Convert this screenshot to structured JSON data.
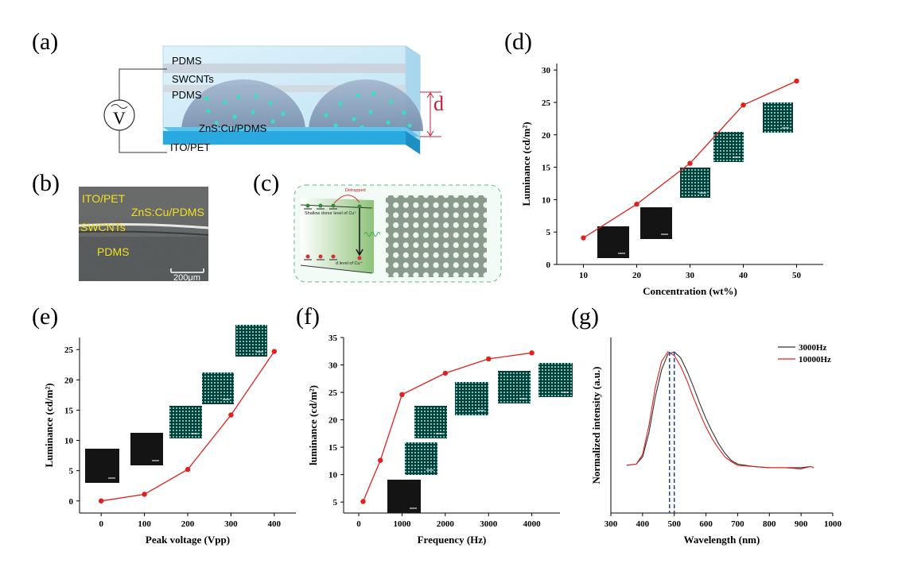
{
  "panels": {
    "a": {
      "label": "(a)",
      "layers": [
        "PDMS",
        "SWCNTs",
        "PDMS",
        "ZnS:Cu/PDMS",
        "ITO/PET"
      ],
      "source_symbol": "V",
      "thickness_label": "d"
    },
    "b": {
      "label": "(b)",
      "layers": [
        "ITO/PET",
        "ZnS:Cu/PDMS",
        "SWCNTs",
        "PDMS"
      ],
      "scale_bar": "200μm"
    },
    "c": {
      "label": "(c)",
      "detrapped": "Detrapped",
      "shallow_donor": "Shallow donor level of Cu⁺",
      "d_level": "d level of Cu⁺"
    },
    "d": {
      "label": "(d)"
    },
    "e": {
      "label": "(e)"
    },
    "f": {
      "label": "(f)"
    },
    "g": {
      "label": "(g)"
    }
  },
  "colors": {
    "series_red": "#e0201c",
    "series_black": "#333333",
    "phosphor": "#36e0c0",
    "dashed_blue": "#1a3fb0",
    "substrate_blue": "#2aa8e0",
    "dimension_red": "#c0203a"
  },
  "chart_data": [
    {
      "id": "d",
      "type": "line",
      "x": [
        10,
        20,
        30,
        40,
        50
      ],
      "series": [
        {
          "values": [
            4.1,
            9.3,
            15.6,
            24.6,
            28.3
          ]
        }
      ],
      "xlabel": "Concentration (wt%)",
      "ylabel": "Luminance (cd/m²)",
      "xlim": [
        5,
        55
      ],
      "ylim": [
        0,
        31
      ],
      "xticks": [
        10,
        20,
        30,
        40,
        50
      ],
      "yticks": [
        0,
        5,
        10,
        15,
        20,
        25,
        30
      ],
      "grid": false
    },
    {
      "id": "e",
      "type": "line",
      "x": [
        0,
        100,
        200,
        300,
        400
      ],
      "series": [
        {
          "values": [
            0.0,
            1.1,
            5.2,
            14.2,
            24.7
          ]
        }
      ],
      "xlabel": "Peak voltage (Vpp)",
      "ylabel": "Luminance (cd/m²)",
      "xlim": [
        -50,
        450
      ],
      "ylim": [
        -2,
        27
      ],
      "xticks": [
        0,
        100,
        200,
        300,
        400
      ],
      "yticks": [
        0,
        5,
        10,
        15,
        20,
        25
      ],
      "grid": false
    },
    {
      "id": "f",
      "type": "line",
      "x": [
        100,
        500,
        1000,
        2000,
        3000,
        4000
      ],
      "series": [
        {
          "values": [
            5.1,
            12.6,
            24.6,
            28.5,
            31.1,
            32.2
          ]
        }
      ],
      "xlabel": "Frequency (Hz)",
      "ylabel": "luminance (cd/m²)",
      "xlim": [
        -350,
        4650
      ],
      "ylim": [
        3,
        35
      ],
      "xticks": [
        0,
        1000,
        2000,
        3000,
        4000
      ],
      "yticks": [
        5,
        10,
        15,
        20,
        25,
        30,
        35
      ],
      "grid": false
    },
    {
      "id": "g",
      "type": "line",
      "x": [
        350,
        380,
        400,
        420,
        440,
        460,
        480,
        500,
        520,
        540,
        560,
        580,
        600,
        620,
        640,
        660,
        680,
        700,
        750,
        800,
        850,
        900,
        930,
        940
      ],
      "series": [
        {
          "name": "3000Hz",
          "values": [
            0.05,
            0.06,
            0.12,
            0.32,
            0.62,
            0.85,
            0.98,
            1.0,
            0.95,
            0.84,
            0.71,
            0.57,
            0.44,
            0.33,
            0.23,
            0.15,
            0.09,
            0.06,
            0.04,
            0.03,
            0.03,
            0.03,
            0.04,
            0.03
          ]
        },
        {
          "name": "10000Hz",
          "values": [
            0.05,
            0.06,
            0.14,
            0.38,
            0.7,
            0.92,
            1.0,
            0.97,
            0.88,
            0.76,
            0.62,
            0.49,
            0.37,
            0.27,
            0.19,
            0.12,
            0.08,
            0.05,
            0.04,
            0.03,
            0.03,
            0.02,
            0.04,
            0.03
          ]
        }
      ],
      "peaks": [
        485,
        500
      ],
      "xlabel": "Wavelength (nm)",
      "ylabel": "Normalized intensity (a.u.)",
      "xlim": [
        300,
        1000
      ],
      "xticks": [
        300,
        400,
        500,
        600,
        700,
        800,
        900,
        1000
      ],
      "legend": "top-right",
      "grid": false
    }
  ]
}
